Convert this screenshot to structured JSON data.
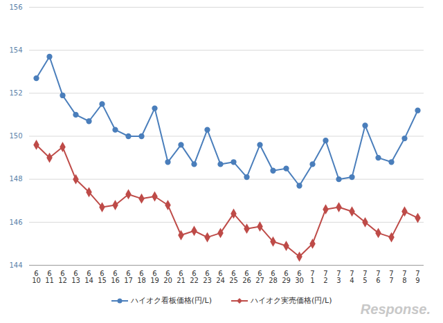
{
  "chart_data": {
    "type": "line",
    "categories": [
      "6\n10",
      "6\n11",
      "6\n12",
      "6\n13",
      "6\n14",
      "6\n15",
      "6\n16",
      "6\n17",
      "6\n18",
      "6\n19",
      "6\n20",
      "6\n21",
      "6\n22",
      "6\n23",
      "6\n24",
      "6\n25",
      "6\n26",
      "6\n27",
      "6\n28",
      "6\n29",
      "6\n30",
      "7\n1",
      "7\n2",
      "7\n3",
      "7\n4",
      "7\n5",
      "7\n6",
      "7\n7",
      "7\n8",
      "7\n9"
    ],
    "series": [
      {
        "name": "ハイオク看板価格(円/L)",
        "color": "#4a7ebb",
        "marker": "circle",
        "values": [
          152.7,
          153.7,
          151.9,
          151.0,
          150.7,
          151.5,
          150.3,
          150.0,
          150.0,
          151.3,
          148.8,
          149.6,
          148.7,
          150.3,
          148.7,
          148.8,
          148.1,
          149.6,
          148.4,
          148.5,
          147.7,
          148.7,
          149.8,
          148.0,
          148.1,
          150.5,
          149.0,
          148.8,
          149.9,
          151.2
        ]
      },
      {
        "name": "ハイオク実売価格(円/L)",
        "color": "#be4b48",
        "marker": "diamond",
        "values": [
          149.6,
          149.0,
          149.5,
          148.0,
          147.4,
          146.7,
          146.8,
          147.3,
          147.1,
          147.2,
          146.8,
          145.4,
          145.6,
          145.3,
          145.5,
          146.4,
          145.7,
          145.8,
          145.1,
          144.9,
          144.4,
          145.0,
          146.6,
          146.7,
          146.5,
          146.0,
          145.5,
          145.3,
          146.5,
          146.2
        ]
      }
    ],
    "ylim": [
      144,
      156
    ],
    "yticks": [
      144,
      146,
      148,
      150,
      152,
      154,
      156
    ],
    "grid": true,
    "legend": "bottom",
    "annotations": [
      "Response."
    ]
  }
}
